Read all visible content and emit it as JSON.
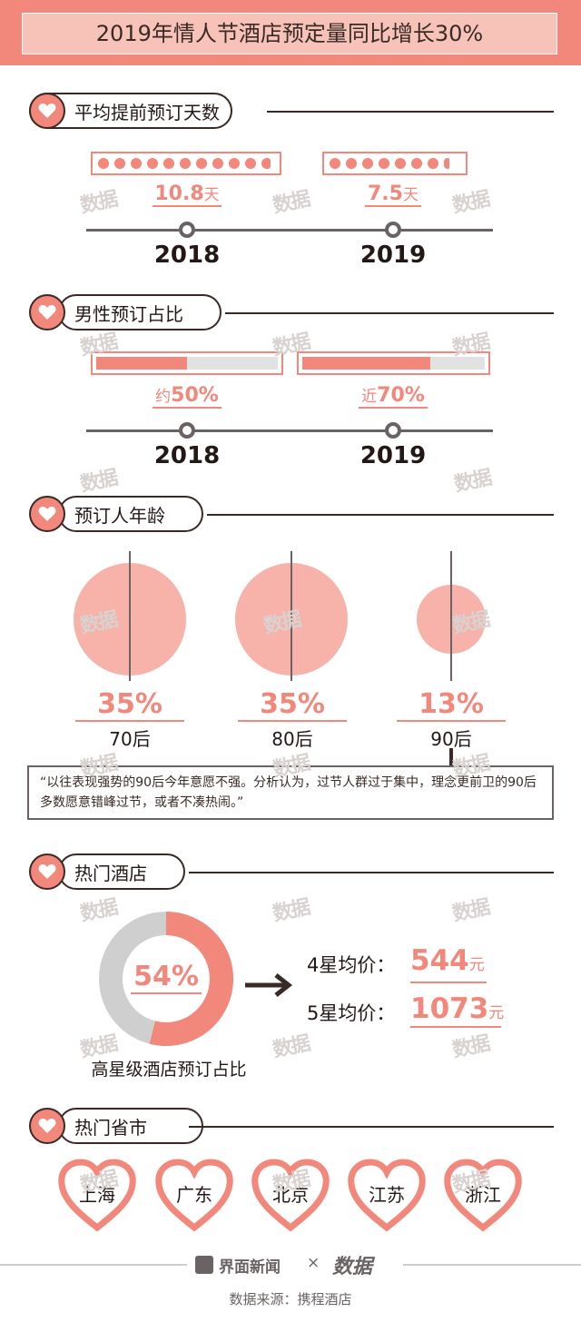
{
  "header": {
    "title": "2019年情人节酒店预定量同比增长30%"
  },
  "sections": {
    "advance_days": {
      "title": "平均提前预订天数"
    },
    "male_share": {
      "title": "男性预订占比"
    },
    "age": {
      "title": "预订人年龄"
    },
    "hotels": {
      "title": "热门酒店"
    },
    "provinces": {
      "title": "热门省市"
    }
  },
  "watermark": "数据",
  "colors": {
    "accent": "#f2877b",
    "accent_light": "#f7b2aa",
    "dark": "#3a2a26",
    "gray": "#6b6363",
    "track": "#e2e2e2"
  },
  "advance_days": {
    "items": [
      {
        "year": "2018",
        "value": "10.8",
        "unit": "天",
        "days": 10.8
      },
      {
        "year": "2019",
        "value": "7.5",
        "unit": "天",
        "days": 7.5
      }
    ]
  },
  "male_share": {
    "items": [
      {
        "year": "2018",
        "prefix": "约",
        "value": "50%",
        "fraction": 0.5
      },
      {
        "year": "2019",
        "prefix": "近",
        "value": "70%",
        "fraction": 0.7
      }
    ]
  },
  "age": {
    "items": [
      {
        "label": "70后",
        "value": "35%",
        "share": 35
      },
      {
        "label": "80后",
        "value": "35%",
        "share": 35
      },
      {
        "label": "90后",
        "value": "13%",
        "share": 13
      }
    ],
    "quote": "“以往表现强势的90后今年意愿不强。分析认为，过节人群过于集中，理念更前卫的90后多数愿意错峰过节，或者不凑热闹。”"
  },
  "hotels": {
    "donut_value": "54%",
    "donut_fraction": 0.54,
    "donut_caption": "高星级酒店预订占比",
    "prices": [
      {
        "label": "4星均价：",
        "value": "544",
        "unit": "元"
      },
      {
        "label": "5星均价：",
        "value": "1073",
        "unit": "元"
      }
    ]
  },
  "provinces": {
    "items": [
      "上海",
      "广东",
      "北京",
      "江苏",
      "浙江"
    ]
  },
  "footer": {
    "brand": "界面新闻",
    "times": "×",
    "partner": "数据",
    "source": "数据来源：携程酒店"
  },
  "chart_data": [
    {
      "type": "bar",
      "title": "平均提前预订天数",
      "categories": [
        "2018",
        "2019"
      ],
      "values": [
        10.8,
        7.5
      ],
      "unit": "天"
    },
    {
      "type": "bar",
      "title": "男性预订占比",
      "categories": [
        "2018",
        "2019"
      ],
      "values": [
        50,
        70
      ],
      "unit": "%"
    },
    {
      "type": "scatter",
      "title": "预订人年龄",
      "categories": [
        "70后",
        "80后",
        "90后"
      ],
      "values": [
        35,
        35,
        13
      ],
      "unit": "%"
    },
    {
      "type": "pie",
      "title": "热门酒店",
      "categories": [
        "高星级酒店预订占比"
      ],
      "values": [
        54
      ],
      "unit": "%"
    }
  ]
}
